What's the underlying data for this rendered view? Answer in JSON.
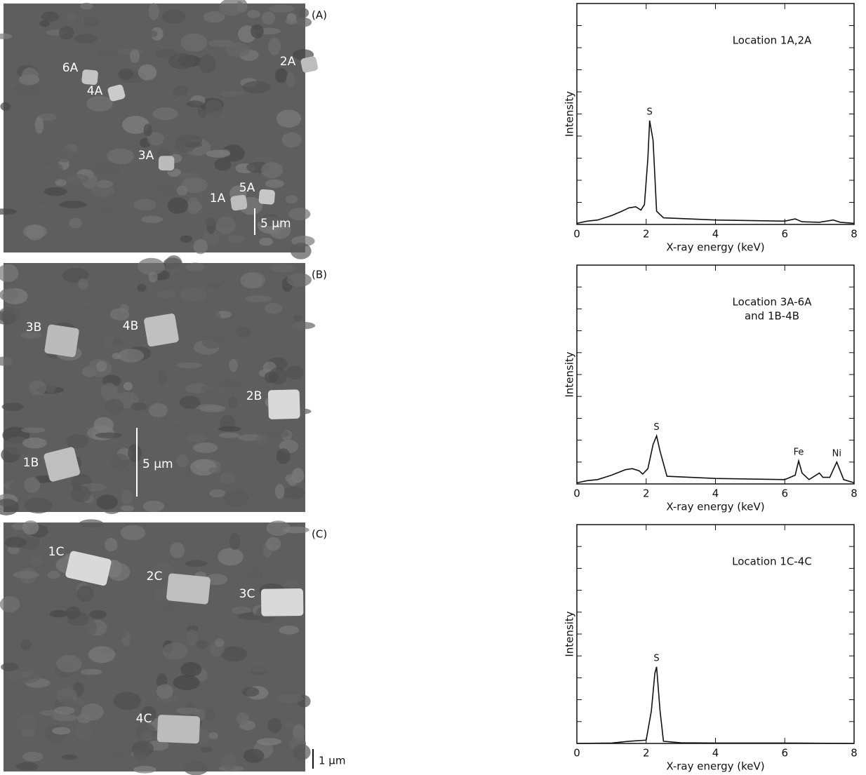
{
  "panels": [
    {
      "label": "(A)",
      "markers": [
        "6A",
        "4A",
        "2A",
        "3A",
        "1A",
        "5A"
      ],
      "scale": "5 μm"
    },
    {
      "label": "(B)",
      "markers": [
        "3B",
        "4B",
        "2B",
        "1B"
      ],
      "scale": "5 μm"
    },
    {
      "label": "(C)",
      "markers": [
        "1C",
        "2C",
        "3C",
        "4C"
      ],
      "scale": "1 μm"
    }
  ],
  "chart_data": [
    {
      "type": "line",
      "annotation": [
        "Location 1A,2A"
      ],
      "x_label": "X-ray energy (keV)",
      "y_label": "Intensity",
      "x": [
        0,
        0.3,
        0.6,
        1.0,
        1.3,
        1.5,
        1.7,
        1.85,
        1.95,
        2.05,
        2.1,
        2.2,
        2.3,
        2.5,
        4,
        6,
        6.3,
        6.5,
        7,
        7.4,
        7.6,
        8
      ],
      "values": [
        0.05,
        0.15,
        0.2,
        0.4,
        0.6,
        0.75,
        0.8,
        0.65,
        0.9,
        3.0,
        4.7,
        3.8,
        0.6,
        0.3,
        0.2,
        0.15,
        0.25,
        0.12,
        0.1,
        0.2,
        0.1,
        0.05
      ],
      "color": "#111111",
      "xlim": [
        0,
        8
      ],
      "ylim": [
        0,
        10
      ],
      "xticks": [
        0,
        2,
        4,
        6,
        8
      ],
      "peaks": [
        {
          "label": "S",
          "x": 2.1,
          "y": 4.7
        }
      ]
    },
    {
      "type": "line",
      "annotation": [
        "Location 3A-6A",
        "and 1B-4B"
      ],
      "x_label": "X-ray energy (keV)",
      "y_label": "Intensity",
      "x": [
        0,
        0.3,
        0.6,
        1.0,
        1.4,
        1.6,
        1.8,
        1.9,
        2.05,
        2.2,
        2.3,
        2.4,
        2.6,
        4,
        6,
        6.3,
        6.4,
        6.5,
        6.7,
        7.0,
        7.1,
        7.3,
        7.5,
        7.7,
        8
      ],
      "values": [
        0.05,
        0.15,
        0.2,
        0.4,
        0.65,
        0.7,
        0.6,
        0.45,
        0.7,
        1.8,
        2.2,
        1.5,
        0.35,
        0.25,
        0.2,
        0.4,
        1.05,
        0.5,
        0.2,
        0.5,
        0.3,
        0.3,
        1.0,
        0.2,
        0.05
      ],
      "color": "#111111",
      "xlim": [
        0,
        8
      ],
      "ylim": [
        0,
        10
      ],
      "xticks": [
        0,
        2,
        4,
        6,
        8
      ],
      "peaks": [
        {
          "label": "S",
          "x": 2.3,
          "y": 2.2
        },
        {
          "label": "Fe",
          "x": 6.4,
          "y": 1.05
        },
        {
          "label": "Ni",
          "x": 7.5,
          "y": 1.0
        }
      ]
    },
    {
      "type": "line",
      "annotation": [
        "Location 1C-4C"
      ],
      "x_label": "X-ray energy (keV)",
      "y_label": "Intensity",
      "x": [
        0,
        1.0,
        1.5,
        2.0,
        2.15,
        2.25,
        2.3,
        2.4,
        2.5,
        3.0,
        4,
        6,
        8
      ],
      "values": [
        0,
        0.02,
        0.1,
        0.15,
        1.5,
        3.2,
        3.5,
        1.5,
        0.1,
        0.03,
        0.02,
        0.02,
        0
      ],
      "color": "#111111",
      "xlim": [
        0,
        8
      ],
      "ylim": [
        0,
        10
      ],
      "xticks": [
        0,
        2,
        4,
        6,
        8
      ],
      "peaks": [
        {
          "label": "S",
          "x": 2.3,
          "y": 3.5
        }
      ]
    }
  ]
}
